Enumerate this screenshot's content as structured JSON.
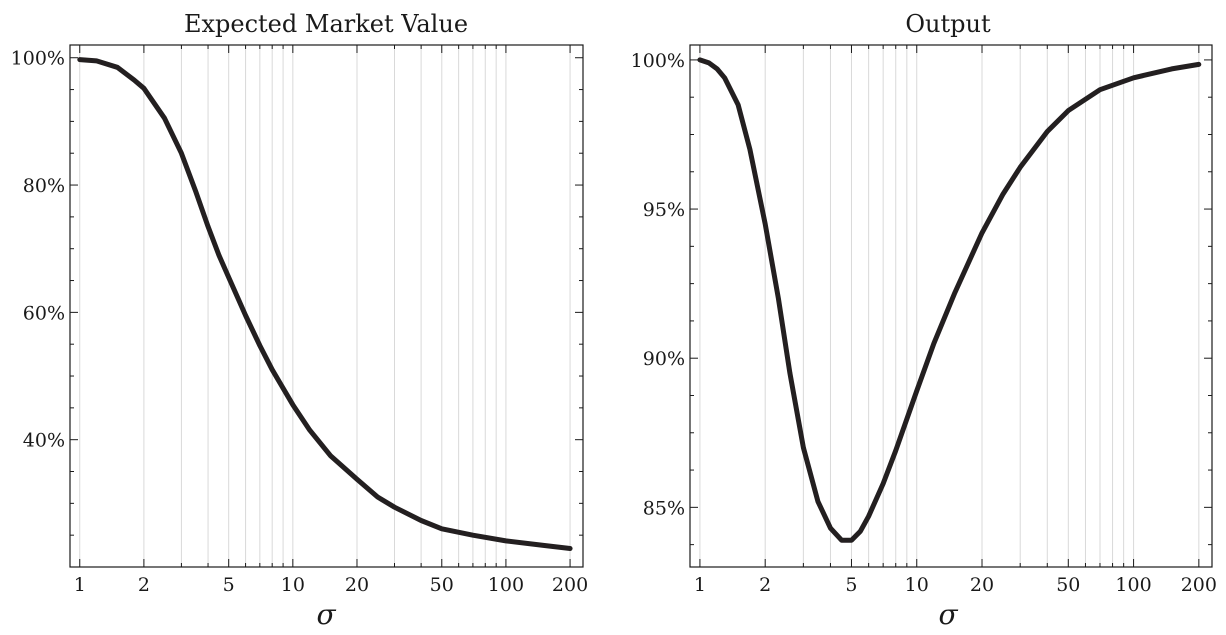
{
  "chart_data": [
    {
      "type": "line",
      "title": "Expected Market Value",
      "xlabel": "σ",
      "ylabel": "",
      "xscale": "log",
      "xlim": [
        0.9,
        230
      ],
      "ylim": [
        0.2,
        1.02
      ],
      "xticks": [
        1,
        2,
        5,
        10,
        20,
        50,
        100,
        200
      ],
      "xtick_labels": [
        "1",
        "2",
        "5",
        "10",
        "20",
        "50",
        "100",
        "200"
      ],
      "yticks": [
        0.4,
        0.6,
        0.8,
        1.0
      ],
      "ytick_labels": [
        "40%",
        "60%",
        "80%",
        "100%"
      ],
      "grid": "vertical minor log gridlines",
      "series": [
        {
          "x": [
            1,
            1.2,
            1.5,
            1.8,
            2,
            2.5,
            3,
            3.5,
            4,
            4.5,
            5,
            6,
            7,
            8,
            10,
            12,
            15,
            20,
            25,
            30,
            40,
            50,
            70,
            100,
            150,
            200
          ],
          "y": [
            0.997,
            0.995,
            0.985,
            0.965,
            0.952,
            0.905,
            0.85,
            0.79,
            0.735,
            0.69,
            0.655,
            0.595,
            0.548,
            0.51,
            0.455,
            0.415,
            0.375,
            0.338,
            0.31,
            0.294,
            0.273,
            0.26,
            0.25,
            0.241,
            0.234,
            0.229
          ]
        }
      ]
    },
    {
      "type": "line",
      "title": "Output",
      "xlabel": "σ",
      "ylabel": "",
      "xscale": "log",
      "xlim": [
        0.9,
        230
      ],
      "ylim": [
        0.83,
        1.005
      ],
      "xticks": [
        1,
        2,
        5,
        10,
        20,
        50,
        100,
        200
      ],
      "xtick_labels": [
        "1",
        "2",
        "5",
        "10",
        "20",
        "50",
        "100",
        "200"
      ],
      "yticks": [
        0.85,
        0.9,
        0.95,
        1.0
      ],
      "ytick_labels": [
        "85%",
        "90%",
        "95%",
        "100%"
      ],
      "grid": "vertical minor log gridlines",
      "series": [
        {
          "x": [
            1,
            1.1,
            1.2,
            1.3,
            1.5,
            1.7,
            2,
            2.3,
            2.6,
            3,
            3.5,
            4,
            4.5,
            5,
            5.5,
            6,
            7,
            8,
            10,
            12,
            15,
            20,
            25,
            30,
            40,
            50,
            70,
            100,
            150,
            200
          ],
          "y": [
            1.0,
            0.999,
            0.997,
            0.994,
            0.985,
            0.97,
            0.945,
            0.92,
            0.895,
            0.87,
            0.852,
            0.843,
            0.839,
            0.839,
            0.842,
            0.847,
            0.858,
            0.869,
            0.889,
            0.905,
            0.922,
            0.942,
            0.955,
            0.964,
            0.976,
            0.983,
            0.99,
            0.994,
            0.997,
            0.9985
          ]
        }
      ]
    }
  ]
}
